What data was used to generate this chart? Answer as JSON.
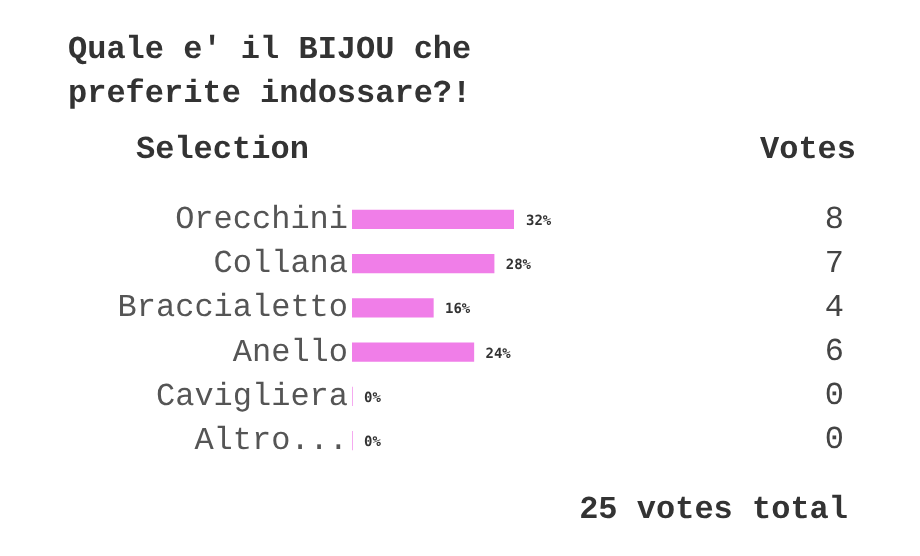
{
  "chart_data": {
    "type": "bar",
    "orientation": "horizontal",
    "title": "Quale e' il BIJOU che\npreferite indossare?!",
    "categories": [
      "Orecchini",
      "Collana",
      "Braccialetto",
      "Anello",
      "Cavigliera",
      "Altro..."
    ],
    "values": [
      32,
      28,
      16,
      24,
      0,
      0
    ],
    "value_labels": [
      "32%",
      "28%",
      "16%",
      "24%",
      "0%",
      "0%"
    ],
    "color": "#f07ee8",
    "tick_labels": "y",
    "legend": false,
    "annotations": [
      "Selection",
      "Votes",
      "25 votes total",
      "8",
      "7",
      "4",
      "6",
      "0",
      "0"
    ]
  }
}
